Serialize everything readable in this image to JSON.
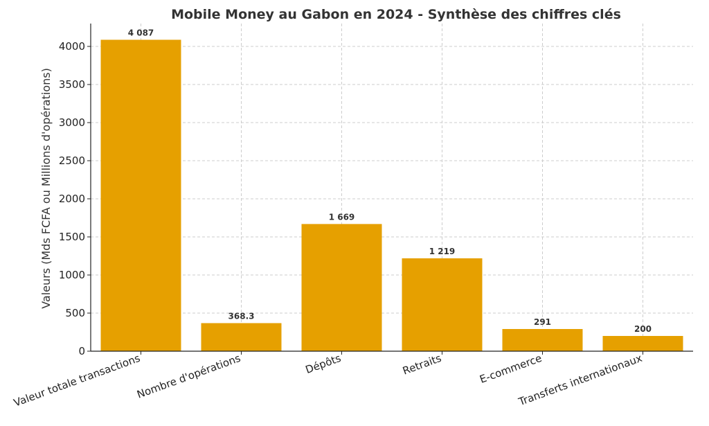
{
  "chart_data": {
    "type": "bar",
    "title": "Mobile Money au Gabon en 2024 - Synthèse des chiffres clés",
    "xlabel": "",
    "ylabel": "Valeurs (Mds FCFA ou Millions d'opérations)",
    "categories": [
      "Valeur totale transactions",
      "Nombre d'opérations",
      "Dépôts",
      "Retraits",
      "E-commerce",
      "Transferts internationaux"
    ],
    "values": [
      4087,
      368.3,
      1669,
      1219,
      291,
      200
    ],
    "value_labels": [
      "4 087",
      "368.3",
      "1 669",
      "1 219",
      "291",
      "200"
    ],
    "ylim": [
      0,
      4300
    ],
    "yticks": [
      0,
      500,
      1000,
      1500,
      2000,
      2500,
      3000,
      3500,
      4000
    ],
    "ytick_labels": [
      "0",
      "500",
      "1000",
      "1500",
      "2000",
      "2500",
      "3000",
      "3500",
      "4000"
    ],
    "grid": true,
    "bar_color": "#e6a000",
    "legend": "none"
  }
}
